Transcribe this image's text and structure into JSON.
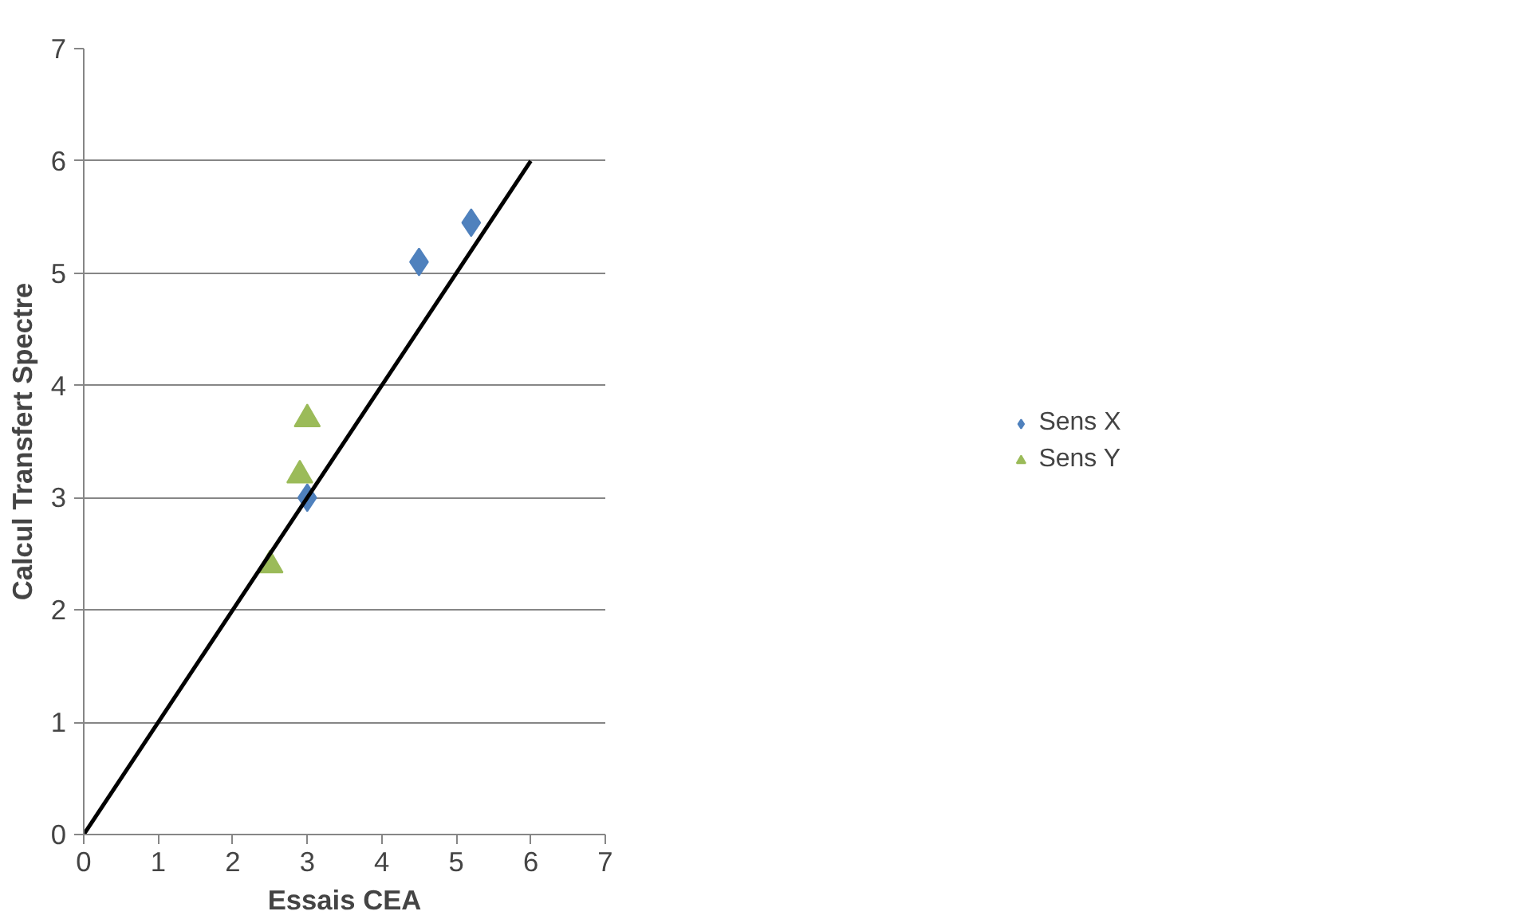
{
  "chart_data": {
    "type": "scatter",
    "xlabel": "Essais CEA",
    "ylabel": "Calcul Transfert Spectre",
    "xlim": [
      0,
      7
    ],
    "ylim": [
      0,
      7
    ],
    "xticks": [
      0,
      1,
      2,
      3,
      4,
      5,
      6,
      7
    ],
    "yticks": [
      0,
      1,
      2,
      3,
      4,
      5,
      6,
      7
    ],
    "grid": "y",
    "legend": "right",
    "series": [
      {
        "name": "Sens X",
        "color": "#4f81bd",
        "marker": "diamond",
        "x": [
          3.0,
          4.5,
          5.2
        ],
        "values": [
          3.0,
          5.1,
          5.45
        ]
      },
      {
        "name": "Sens Y",
        "color": "#9bbb59",
        "marker": "triangle",
        "x": [
          2.5,
          2.9,
          3.0
        ],
        "values": [
          2.4,
          3.2,
          3.7
        ]
      },
      {
        "type": "line",
        "color": "#000000",
        "marker": "none",
        "x": [
          0,
          6
        ],
        "values": [
          0,
          6
        ]
      }
    ]
  }
}
